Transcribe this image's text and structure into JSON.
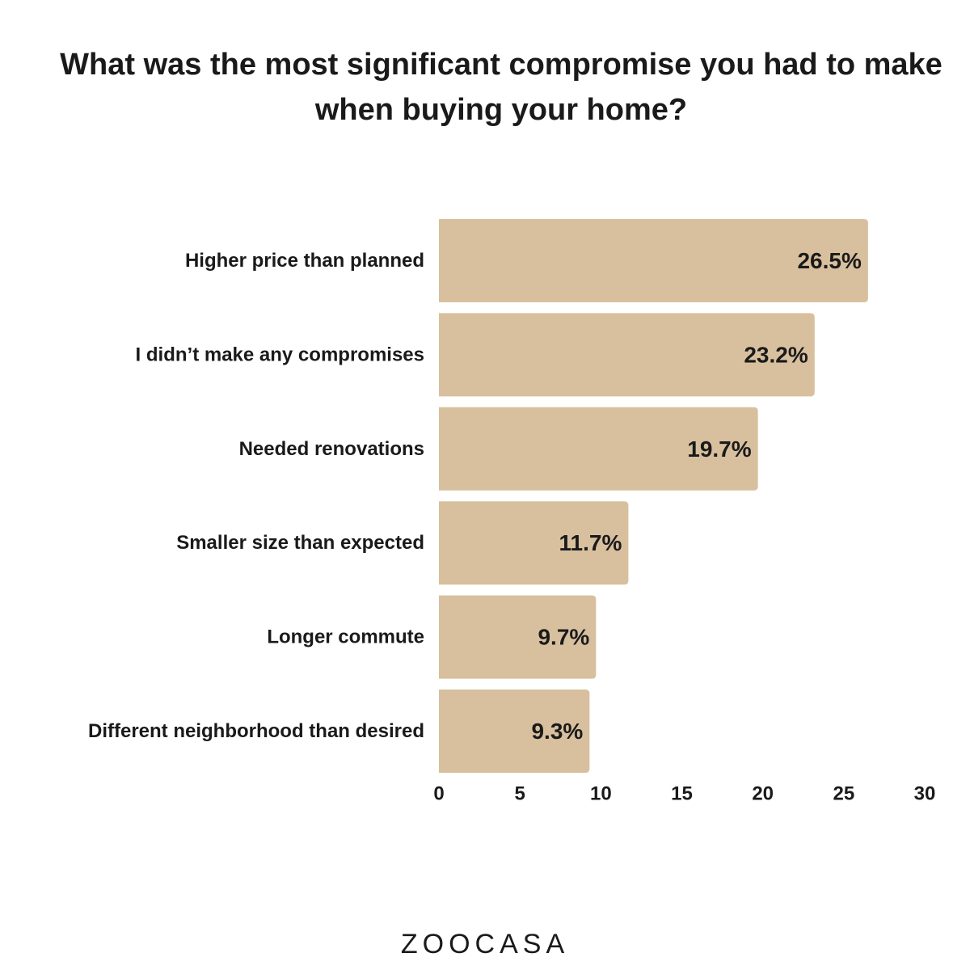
{
  "chart_data": {
    "type": "bar",
    "orientation": "horizontal",
    "title": "What was the most significant compromise you had to make when buying your home?",
    "categories": [
      "Higher price than planned",
      "I didn’t make any compromises",
      "Needed renovations",
      "Smaller size than expected",
      "Longer commute",
      "Different neighborhood than desired"
    ],
    "values": [
      26.5,
      23.2,
      19.7,
      11.7,
      9.7,
      9.3
    ],
    "data_labels": [
      "26.5%",
      "23.2%",
      "19.7%",
      "11.7%",
      "9.7%",
      "9.3%"
    ],
    "xlim": [
      0,
      30
    ],
    "xticks": [
      0,
      5,
      10,
      15,
      20,
      25,
      30
    ],
    "xlabel": "",
    "ylabel": "",
    "grid": false,
    "legend": "none",
    "bar_color": "#d8c09e",
    "text_color": "#1a1a1a"
  },
  "brand": {
    "logo_text": "ZOOCASA"
  }
}
